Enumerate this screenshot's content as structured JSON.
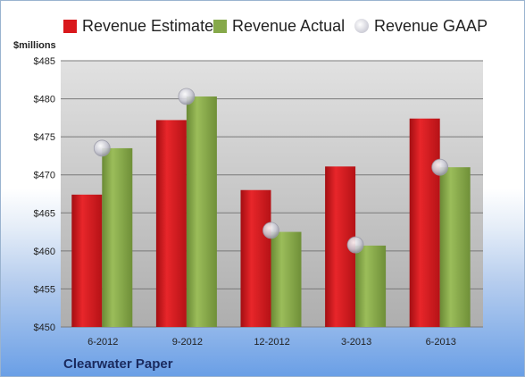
{
  "chart_data": {
    "type": "bar",
    "categories": [
      "6-2012",
      "9-2012",
      "12-2012",
      "3-2013",
      "6-2013"
    ],
    "series": [
      {
        "name": "Revenue Estimate",
        "values": [
          467.4,
          477.2,
          468.0,
          471.1,
          477.4
        ],
        "color": "#d9181c"
      },
      {
        "name": "Revenue Actual",
        "values": [
          473.5,
          480.3,
          462.5,
          460.7,
          471.0
        ],
        "color": "#86a94a"
      }
    ],
    "markers": {
      "name": "Revenue GAAP",
      "values": [
        473.5,
        480.3,
        462.7,
        460.8,
        471.0
      ],
      "color": "#c9c9d4"
    },
    "ylabel": "$millions",
    "ylim": [
      450,
      485
    ],
    "yticks": [
      450,
      455,
      460,
      465,
      470,
      475,
      480,
      485
    ],
    "grid": true,
    "legend": "top"
  },
  "footer": {
    "company": "Clearwater Paper"
  }
}
